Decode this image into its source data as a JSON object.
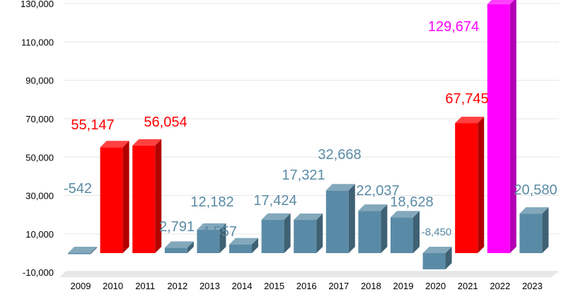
{
  "chart_data": {
    "type": "bar",
    "title": "",
    "xlabel": "",
    "ylabel": "",
    "categories": [
      "2009",
      "2010",
      "2011",
      "2012",
      "2013",
      "2014",
      "2015",
      "2016",
      "2017",
      "2018",
      "2019",
      "2020",
      "2021",
      "2022",
      "2023"
    ],
    "values": [
      -542,
      55147,
      56054,
      2791,
      12182,
      4557,
      17424,
      17321,
      32668,
      22037,
      18628,
      -8450,
      67745,
      129674,
      20580
    ],
    "data_labels": [
      "-542",
      "55,147",
      "56,054",
      "2,791",
      "12,182",
      "4,557",
      "17,424",
      "17,321",
      "32,668",
      "22,037",
      "18,628",
      "-8,450",
      "67,745",
      "129,674",
      "20,580"
    ],
    "bar_colors": [
      "#5a8ba6",
      "#ff0000",
      "#ff0000",
      "#5a8ba6",
      "#5a8ba6",
      "#5a8ba6",
      "#5a8ba6",
      "#5a8ba6",
      "#5a8ba6",
      "#5a8ba6",
      "#5a8ba6",
      "#5a8ba6",
      "#ff0000",
      "#ff00ff",
      "#5a8ba6"
    ],
    "label_colors": [
      "#5a8ba6",
      "#ff0000",
      "#ff0000",
      "#5a8ba6",
      "#5a8ba6",
      "#5a8ba6",
      "#5a8ba6",
      "#5a8ba6",
      "#5a8ba6",
      "#5a8ba6",
      "#5a8ba6",
      "#5a8ba6",
      "#ff0000",
      "#ff00ff",
      "#5a8ba6"
    ],
    "y_ticks": [
      -10000,
      10000,
      30000,
      50000,
      70000,
      90000,
      110000,
      130000
    ],
    "y_tick_labels": [
      "-10,000",
      "10,000",
      "30,000",
      "50,000",
      "70,000",
      "90,000",
      "110,000",
      "130,000"
    ],
    "ylim": [
      -10000,
      130000
    ],
    "grid": true,
    "style": "3d-bars"
  }
}
